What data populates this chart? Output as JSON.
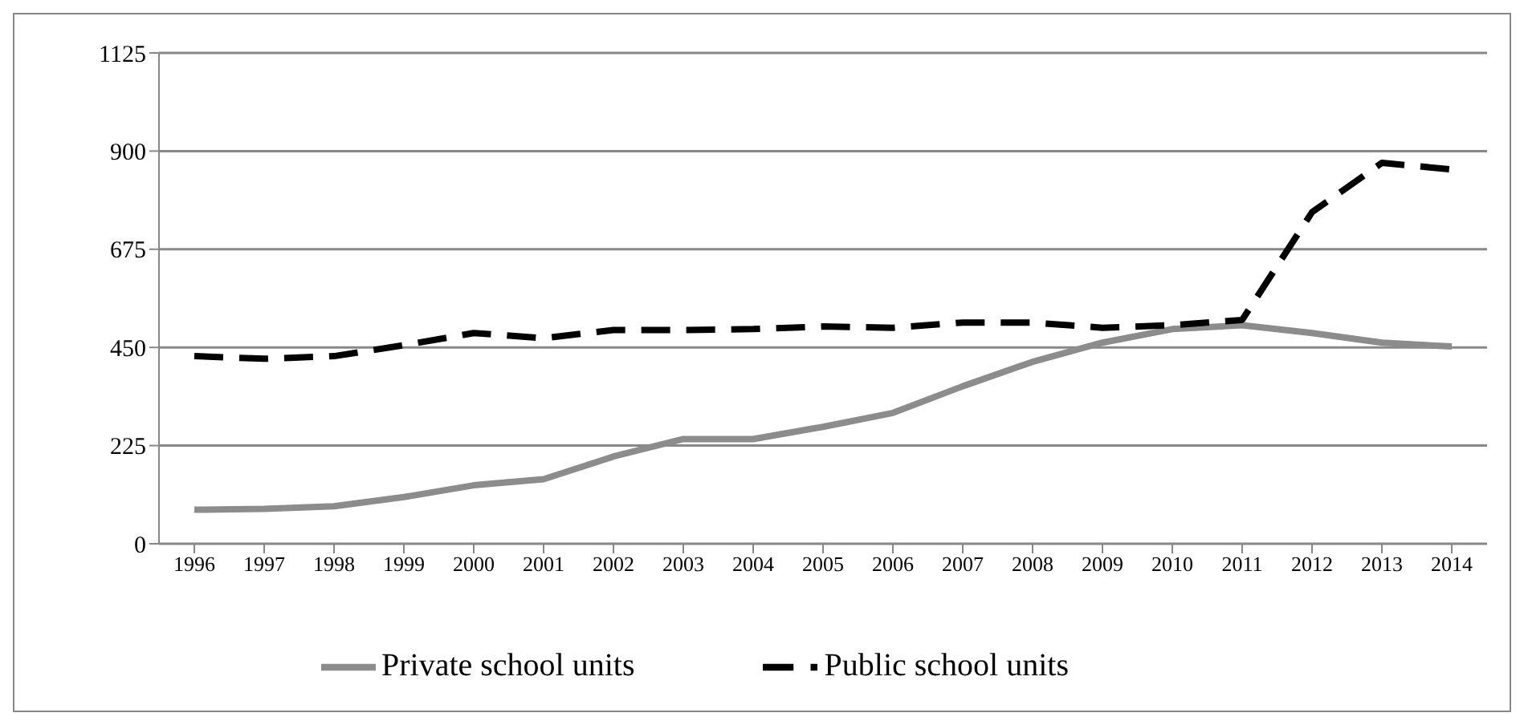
{
  "chart_data": {
    "type": "line",
    "categories": [
      "1996",
      "1997",
      "1998",
      "1999",
      "2000",
      "2001",
      "2002",
      "2003",
      "2004",
      "2005",
      "2006",
      "2007",
      "2008",
      "2009",
      "2010",
      "2011",
      "2012",
      "2013",
      "2014"
    ],
    "series": [
      {
        "name": "Private school units",
        "color": "#8c8c8c",
        "line_style": "solid",
        "values": [
          78,
          80,
          86,
          107,
          134,
          148,
          200,
          240,
          240,
          268,
          300,
          361,
          417,
          461,
          492,
          501,
          483,
          461,
          452
        ]
      },
      {
        "name": "Public school units",
        "color": "#000000",
        "line_style": "dashed",
        "values": [
          430,
          424,
          430,
          455,
          483,
          471,
          490,
          490,
          492,
          498,
          495,
          507,
          507,
          495,
          501,
          513,
          760,
          873,
          858
        ]
      }
    ],
    "ylim": [
      0,
      1125
    ],
    "yticks": [
      0,
      225,
      450,
      675,
      900,
      1125
    ],
    "grid": "y",
    "legend": "bottom",
    "marker": "none"
  }
}
